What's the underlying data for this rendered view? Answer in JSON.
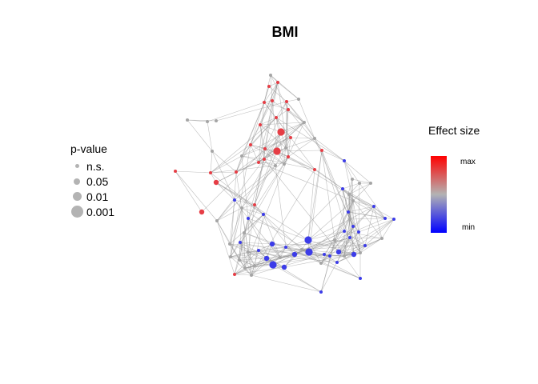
{
  "chart_data": {
    "type": "network",
    "title": "BMI",
    "pvalue_legend": {
      "title": "p-value",
      "entries": [
        "n.s.",
        "0.05",
        "0.01",
        "0.001"
      ]
    },
    "effect_legend": {
      "title": "Effect size",
      "max_label": "max",
      "min_label": "min"
    },
    "color_scale": {
      "max": "#ff0000",
      "mid": "#b3b3b3",
      "min": "#0000ff"
    }
  }
}
